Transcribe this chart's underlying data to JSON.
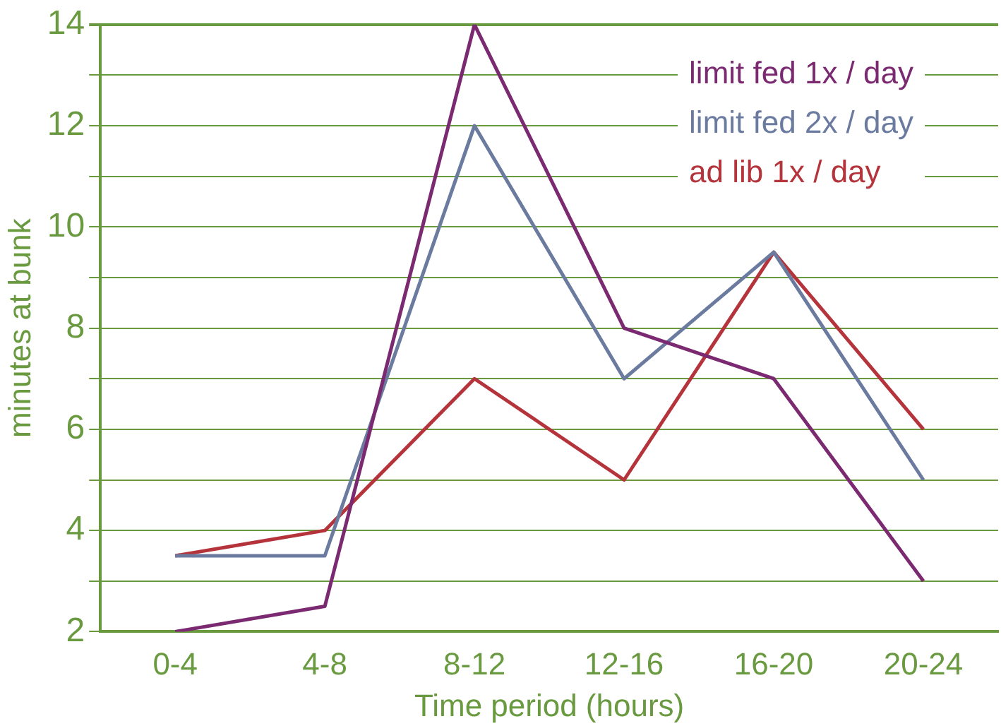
{
  "chart_data": {
    "type": "line",
    "xlabel": "Time period (hours)",
    "ylabel": "minutes at bunk",
    "categories": [
      "0-4",
      "4-8",
      "8-12",
      "12-16",
      "16-20",
      "20-24"
    ],
    "series": [
      {
        "name": "limit fed 1x / day",
        "color": "#7b2a72",
        "values": [
          2,
          2.5,
          14,
          8,
          7,
          3
        ]
      },
      {
        "name": "limit fed 2x / day",
        "color": "#6b7ba0",
        "values": [
          3.5,
          3.5,
          12,
          7,
          9.5,
          5
        ]
      },
      {
        "name": "ad lib 1x / day",
        "color": "#b5343c",
        "values": [
          3.5,
          4,
          7,
          5,
          9.5,
          6
        ]
      }
    ],
    "ylim": [
      2,
      14
    ],
    "yticks": [
      2,
      {
        "value": 3,
        "label": null
      },
      4,
      {
        "value": 5,
        "label": null
      },
      6,
      {
        "value": 7,
        "label": null
      },
      8,
      {
        "value": 9,
        "label": null
      },
      10,
      {
        "value": 11,
        "label": null
      },
      12,
      {
        "value": 13,
        "label": null
      },
      14
    ],
    "grid": "y",
    "legend": "top right",
    "marker": "none",
    "line_style": "solid"
  }
}
